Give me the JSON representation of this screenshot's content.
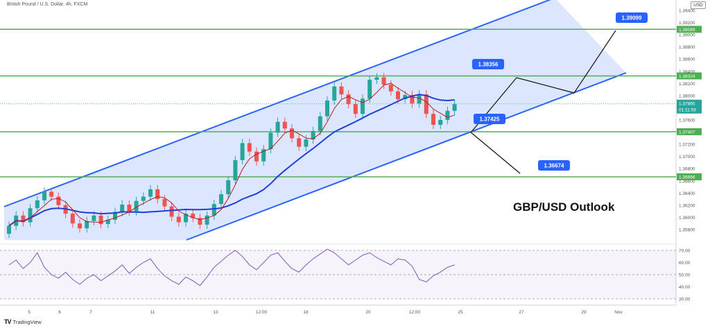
{
  "symbol_title": "British Pound / U.S. Dollar, 4h, FXCM",
  "currency_badge": "USD",
  "outlook_text": "GBP/USD Outlook",
  "branding": "TradingView",
  "current_price": "1.37865",
  "countdown": "01:11:59",
  "colors": {
    "up": "#26a69a",
    "down": "#ef5350",
    "channel": "#2962ff",
    "level_line": "#4caf50",
    "ma_slow": "#1e3fd8",
    "ma_fast": "#b71c1c",
    "rsi": "#7e57c2"
  },
  "chart_data": [
    {
      "type": "candlestick",
      "yticks": [
        "1.35800",
        "1.36000",
        "1.36200",
        "1.36400",
        "1.36600",
        "1.36800",
        "1.37000",
        "1.37200",
        "1.37400",
        "1.37600",
        "1.37800",
        "1.38000",
        "1.38200",
        "1.38400",
        "1.38600",
        "1.38800",
        "1.39000",
        "1.39200",
        "1.39400"
      ],
      "xticks": [
        "5",
        "6",
        "7",
        "11",
        "13",
        "12:00",
        "18",
        "20",
        "12:00",
        "25",
        "27",
        "29",
        "Nov"
      ],
      "levels": [
        "1.39089",
        "1.38324",
        "1.37407",
        "1.36666"
      ],
      "annotations": [
        "1.39099",
        "1.38356",
        "1.37425",
        "1.36674"
      ],
      "closes": [
        1.3586,
        1.3603,
        1.3592,
        1.3615,
        1.3628,
        1.3642,
        1.3634,
        1.362,
        1.3606,
        1.359,
        1.3582,
        1.3594,
        1.3603,
        1.3589,
        1.3596,
        1.3609,
        1.3621,
        1.361,
        1.3627,
        1.3634,
        1.3646,
        1.363,
        1.3618,
        1.3601,
        1.3592,
        1.3606,
        1.3599,
        1.3588,
        1.3603,
        1.3622,
        1.3638,
        1.3661,
        1.3694,
        1.3722,
        1.3708,
        1.3692,
        1.3712,
        1.3739,
        1.3757,
        1.3746,
        1.373,
        1.3716,
        1.3728,
        1.3742,
        1.3766,
        1.3792,
        1.3815,
        1.3802,
        1.3786,
        1.377,
        1.3795,
        1.3826,
        1.383,
        1.3818,
        1.3807,
        1.3794,
        1.3801,
        1.3787,
        1.3802,
        1.377,
        1.3752,
        1.376,
        1.3775,
        1.3786
      ],
      "rsi": {
        "ticks": [
          "70.00",
          "60.00",
          "50.00",
          "40.00",
          "30.00"
        ],
        "values": [
          58,
          62,
          55,
          60,
          68,
          56,
          50,
          47,
          52,
          46,
          42,
          47,
          50,
          45,
          49,
          53,
          58,
          51,
          56,
          60,
          63,
          55,
          49,
          45,
          42,
          48,
          45,
          41,
          48,
          56,
          61,
          66,
          70,
          65,
          58,
          54,
          60,
          66,
          68,
          61,
          55,
          52,
          58,
          63,
          67,
          71,
          68,
          63,
          58,
          62,
          66,
          68,
          64,
          61,
          58,
          63,
          62,
          57,
          46,
          44,
          49,
          52,
          56,
          58
        ]
      }
    }
  ]
}
